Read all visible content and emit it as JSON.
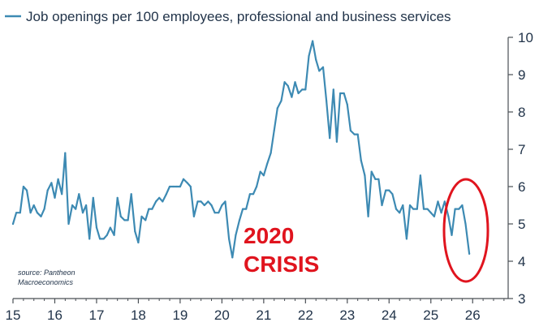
{
  "chart_data": {
    "type": "line",
    "title": "",
    "legend": [
      "Job openings per 100 employees, professional and business services"
    ],
    "legend_position": "top",
    "xlabel": "",
    "ylabel": "",
    "x_tick_labels": [
      "15",
      "16",
      "17",
      "18",
      "19",
      "20",
      "21",
      "22",
      "23",
      "24",
      "25",
      "26"
    ],
    "x_ticks": [
      2015,
      2016,
      2017,
      2018,
      2019,
      2020,
      2021,
      2022,
      2023,
      2024,
      2025,
      2026
    ],
    "y_ticks": [
      3,
      4,
      5,
      6,
      7,
      8,
      9,
      10
    ],
    "xlim": [
      2015,
      2026.85
    ],
    "ylim": [
      3,
      10
    ],
    "y_axis_side": "right",
    "grid": false,
    "series": [
      {
        "name": "Job openings per 100 employees, professional and business services",
        "color": "#3d8ab3",
        "points": [
          [
            2015.0,
            5.0
          ],
          [
            2015.08,
            5.3
          ],
          [
            2015.17,
            5.3
          ],
          [
            2015.25,
            6.0
          ],
          [
            2015.33,
            5.9
          ],
          [
            2015.42,
            5.3
          ],
          [
            2015.5,
            5.5
          ],
          [
            2015.58,
            5.3
          ],
          [
            2015.67,
            5.2
          ],
          [
            2015.75,
            5.4
          ],
          [
            2015.83,
            5.9
          ],
          [
            2015.92,
            6.1
          ],
          [
            2016.0,
            5.7
          ],
          [
            2016.08,
            6.2
          ],
          [
            2016.17,
            5.8
          ],
          [
            2016.25,
            6.9
          ],
          [
            2016.33,
            5.0
          ],
          [
            2016.42,
            5.5
          ],
          [
            2016.5,
            5.4
          ],
          [
            2016.58,
            5.8
          ],
          [
            2016.67,
            5.3
          ],
          [
            2016.75,
            5.5
          ],
          [
            2016.83,
            4.6
          ],
          [
            2016.92,
            5.7
          ],
          [
            2017.0,
            4.9
          ],
          [
            2017.08,
            4.6
          ],
          [
            2017.17,
            4.6
          ],
          [
            2017.25,
            4.7
          ],
          [
            2017.33,
            4.9
          ],
          [
            2017.42,
            4.7
          ],
          [
            2017.5,
            5.7
          ],
          [
            2017.58,
            5.2
          ],
          [
            2017.67,
            5.1
          ],
          [
            2017.75,
            5.1
          ],
          [
            2017.83,
            5.8
          ],
          [
            2017.92,
            4.8
          ],
          [
            2018.0,
            4.5
          ],
          [
            2018.08,
            5.2
          ],
          [
            2018.17,
            5.1
          ],
          [
            2018.25,
            5.4
          ],
          [
            2018.33,
            5.4
          ],
          [
            2018.42,
            5.6
          ],
          [
            2018.5,
            5.7
          ],
          [
            2018.58,
            5.6
          ],
          [
            2018.67,
            5.8
          ],
          [
            2018.75,
            6.0
          ],
          [
            2018.83,
            6.0
          ],
          [
            2018.92,
            6.0
          ],
          [
            2019.0,
            6.0
          ],
          [
            2019.08,
            6.2
          ],
          [
            2019.17,
            6.1
          ],
          [
            2019.25,
            6.0
          ],
          [
            2019.33,
            5.2
          ],
          [
            2019.42,
            5.6
          ],
          [
            2019.5,
            5.6
          ],
          [
            2019.58,
            5.5
          ],
          [
            2019.67,
            5.6
          ],
          [
            2019.75,
            5.5
          ],
          [
            2019.83,
            5.3
          ],
          [
            2019.92,
            5.3
          ],
          [
            2020.0,
            5.5
          ],
          [
            2020.08,
            5.6
          ],
          [
            2020.17,
            4.6
          ],
          [
            2020.25,
            4.1
          ],
          [
            2020.33,
            4.7
          ],
          [
            2020.42,
            5.1
          ],
          [
            2020.5,
            5.4
          ],
          [
            2020.58,
            5.4
          ],
          [
            2020.67,
            5.8
          ],
          [
            2020.75,
            5.8
          ],
          [
            2020.83,
            6.0
          ],
          [
            2020.92,
            6.4
          ],
          [
            2021.0,
            6.3
          ],
          [
            2021.08,
            6.6
          ],
          [
            2021.17,
            6.9
          ],
          [
            2021.25,
            7.5
          ],
          [
            2021.33,
            8.1
          ],
          [
            2021.42,
            8.3
          ],
          [
            2021.5,
            8.8
          ],
          [
            2021.58,
            8.7
          ],
          [
            2021.67,
            8.4
          ],
          [
            2021.75,
            8.8
          ],
          [
            2021.83,
            8.5
          ],
          [
            2021.92,
            8.6
          ],
          [
            2022.0,
            8.6
          ],
          [
            2022.08,
            9.5
          ],
          [
            2022.17,
            9.9
          ],
          [
            2022.25,
            9.4
          ],
          [
            2022.33,
            9.1
          ],
          [
            2022.42,
            9.2
          ],
          [
            2022.5,
            8.3
          ],
          [
            2022.58,
            7.3
          ],
          [
            2022.67,
            8.6
          ],
          [
            2022.75,
            7.2
          ],
          [
            2022.83,
            8.5
          ],
          [
            2022.92,
            8.5
          ],
          [
            2023.0,
            8.2
          ],
          [
            2023.08,
            7.5
          ],
          [
            2023.17,
            7.4
          ],
          [
            2023.25,
            7.4
          ],
          [
            2023.33,
            6.7
          ],
          [
            2023.42,
            6.3
          ],
          [
            2023.5,
            5.2
          ],
          [
            2023.58,
            6.4
          ],
          [
            2023.67,
            6.2
          ],
          [
            2023.75,
            6.2
          ],
          [
            2023.83,
            5.5
          ],
          [
            2023.92,
            5.9
          ],
          [
            2024.0,
            5.9
          ],
          [
            2024.08,
            5.8
          ],
          [
            2024.17,
            5.4
          ],
          [
            2024.25,
            5.3
          ],
          [
            2024.33,
            5.5
          ],
          [
            2024.42,
            4.6
          ],
          [
            2024.5,
            5.5
          ],
          [
            2024.58,
            5.4
          ],
          [
            2024.67,
            5.4
          ],
          [
            2024.75,
            6.3
          ],
          [
            2024.83,
            5.4
          ],
          [
            2024.92,
            5.4
          ],
          [
            2025.0,
            5.3
          ],
          [
            2025.08,
            5.2
          ],
          [
            2025.17,
            5.6
          ],
          [
            2025.25,
            5.3
          ],
          [
            2025.33,
            5.6
          ],
          [
            2025.42,
            5.2
          ],
          [
            2025.5,
            4.7
          ],
          [
            2025.58,
            5.4
          ],
          [
            2025.67,
            5.4
          ],
          [
            2025.75,
            5.5
          ],
          [
            2025.83,
            5.0
          ],
          [
            2025.92,
            4.2
          ]
        ]
      }
    ],
    "annotations": {
      "crisis_line1": "2020",
      "crisis_line2": "CRISIS",
      "source_line1": "source: Pantheon",
      "source_line2": "Macroeconomics"
    },
    "highlight_color": "#e0141e"
  }
}
